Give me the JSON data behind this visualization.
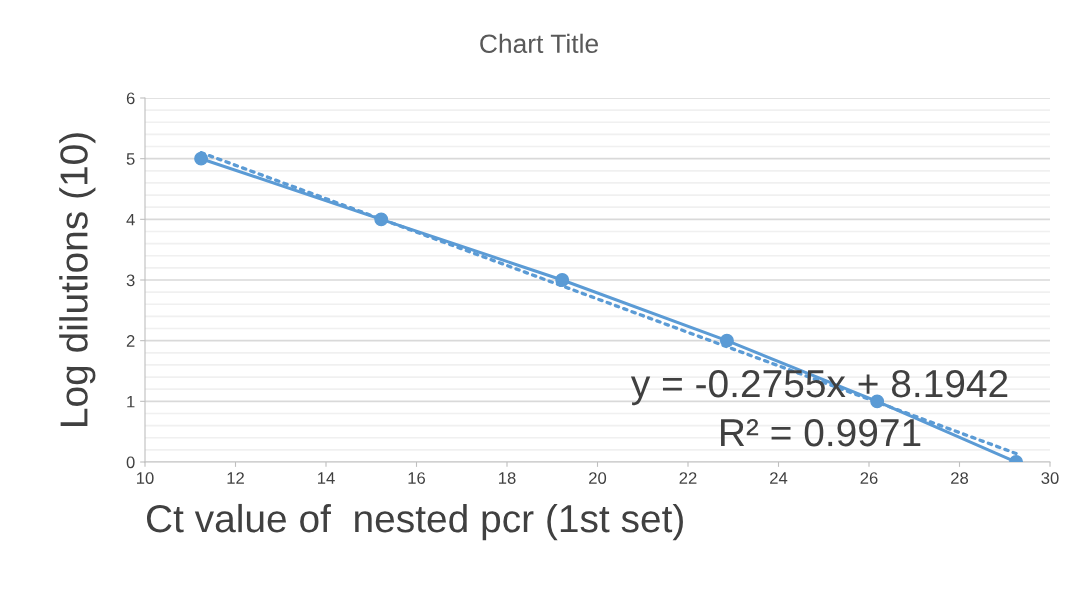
{
  "chart_data": {
    "type": "line",
    "title": "Chart Title",
    "xlabel": "Ct value of  nested pcr (1st set)",
    "ylabel": "Log dilutions (10)",
    "x": [
      11.24,
      15.22,
      19.22,
      22.86,
      26.18,
      29.25
    ],
    "series": [
      {
        "color": "#5b9bd5",
        "values": [
          5,
          4,
          3,
          2,
          1,
          0
        ],
        "marker": "circle",
        "line_style": "solid"
      },
      {
        "type": "line",
        "color": "#5b9bd5",
        "x": [
          11.24,
          29.25
        ],
        "values": [
          5.1,
          0.14
        ],
        "marker": "none",
        "line_style": "dotted"
      }
    ],
    "annotations": [
      "y = -0.2755x + 8.1942",
      "R² = 0.9971"
    ],
    "xlim": [
      10,
      30
    ],
    "xticks": [
      10,
      12,
      14,
      16,
      18,
      20,
      22,
      24,
      26,
      28,
      30
    ],
    "ylim": [
      0,
      6
    ],
    "yticks": [
      0,
      {
        "value": 0.2,
        "label": null
      },
      {
        "value": 0.4,
        "label": null
      },
      {
        "value": 0.6,
        "label": null
      },
      {
        "value": 0.8,
        "label": null
      },
      1,
      {
        "value": 1.2,
        "label": null
      },
      {
        "value": 1.4,
        "label": null
      },
      {
        "value": 1.6,
        "label": null
      },
      {
        "value": 1.8,
        "label": null
      },
      2,
      {
        "value": 2.2,
        "label": null
      },
      {
        "value": 2.4,
        "label": null
      },
      {
        "value": 2.6,
        "label": null
      },
      {
        "value": 2.8,
        "label": null
      },
      3,
      {
        "value": 3.2,
        "label": null
      },
      {
        "value": 3.4,
        "label": null
      },
      {
        "value": 3.6,
        "label": null
      },
      {
        "value": 3.8,
        "label": null
      },
      4,
      {
        "value": 4.2,
        "label": null
      },
      {
        "value": 4.4,
        "label": null
      },
      {
        "value": 4.6,
        "label": null
      },
      {
        "value": 4.8,
        "label": null
      },
      5,
      {
        "value": 5.2,
        "label": null
      },
      {
        "value": 5.4,
        "label": null
      },
      {
        "value": 5.6,
        "label": null
      },
      {
        "value": 5.8,
        "label": null
      },
      6
    ],
    "grid": "y",
    "legend": false
  }
}
